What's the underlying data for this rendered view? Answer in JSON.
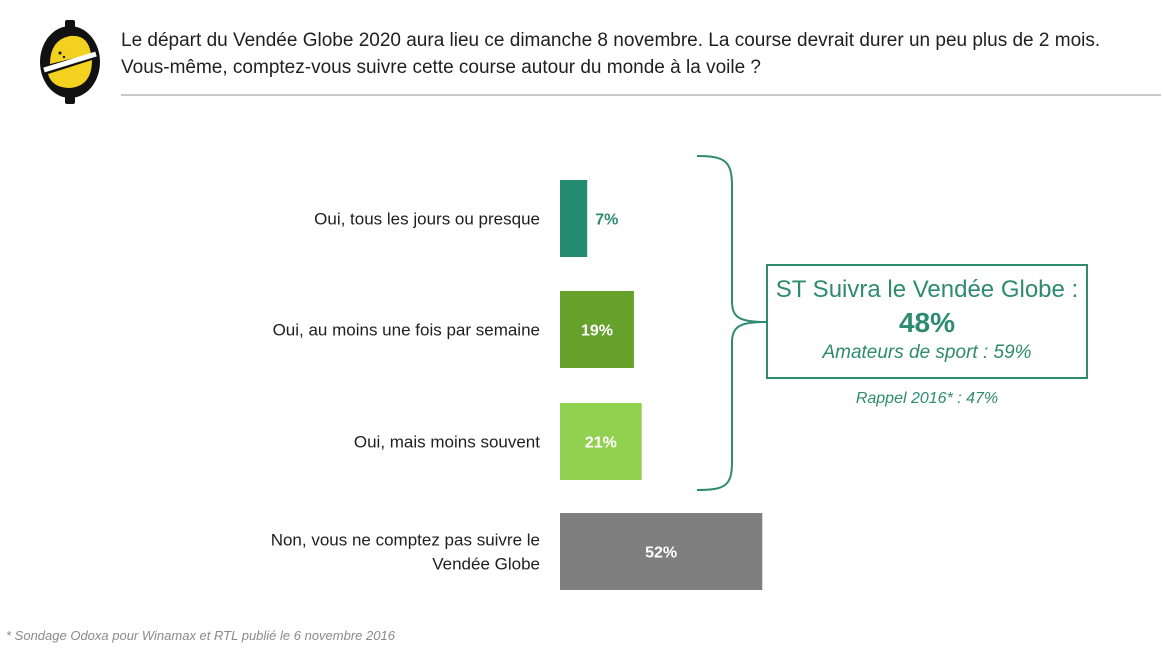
{
  "question": {
    "line1": "Le départ du Vendée Globe 2020 aura lieu ce dimanche 8 novembre. La course devrait durer un peu plus de 2 mois.",
    "line2": "Vous-même, comptez-vous suivre cette course autour du monde à la voile ?"
  },
  "logo": {
    "icon": "odoxa-logo-icon"
  },
  "colors": {
    "dark_green": "#258c72",
    "medium_green": "#66a12c",
    "light_green": "#92d050",
    "gray": "#7f7f7f",
    "accent": "#2e8b6e"
  },
  "chart_data": {
    "type": "bar",
    "orientation": "horizontal",
    "xlim": [
      0,
      100
    ],
    "grid": false,
    "categories": [
      "Oui, tous les jours ou presque",
      "Oui, au moins une fois par semaine",
      "Oui, mais moins souvent",
      "Non, vous ne comptez pas suivre le Vendée Globe"
    ],
    "category_lines": [
      [
        "Oui, tous les jours ou presque"
      ],
      [
        "Oui, au moins une fois par semaine"
      ],
      [
        "Oui, mais moins souvent"
      ],
      [
        "Non, vous ne comptez pas suivre le",
        "Vendée Globe"
      ]
    ],
    "values": [
      7,
      19,
      21,
      52
    ],
    "value_labels": [
      "7%",
      "19%",
      "21%",
      "52%"
    ],
    "bar_colors": [
      "#258c72",
      "#66a12c",
      "#92d050",
      "#7f7f7f"
    ],
    "label_colors": [
      "#2e8b6e",
      "#ffffff",
      "#ffffff",
      "#ffffff"
    ],
    "label_outside": [
      true,
      false,
      false,
      false
    ]
  },
  "summary": {
    "title": "ST Suivra le Vendée Globe :",
    "value": "48%",
    "subgroup": "Amateurs de sport : 59%",
    "rappel": "Rappel 2016* : 47%"
  },
  "footnote": "* Sondage Odoxa pour Winamax et RTL publié le 6 novembre 2016"
}
